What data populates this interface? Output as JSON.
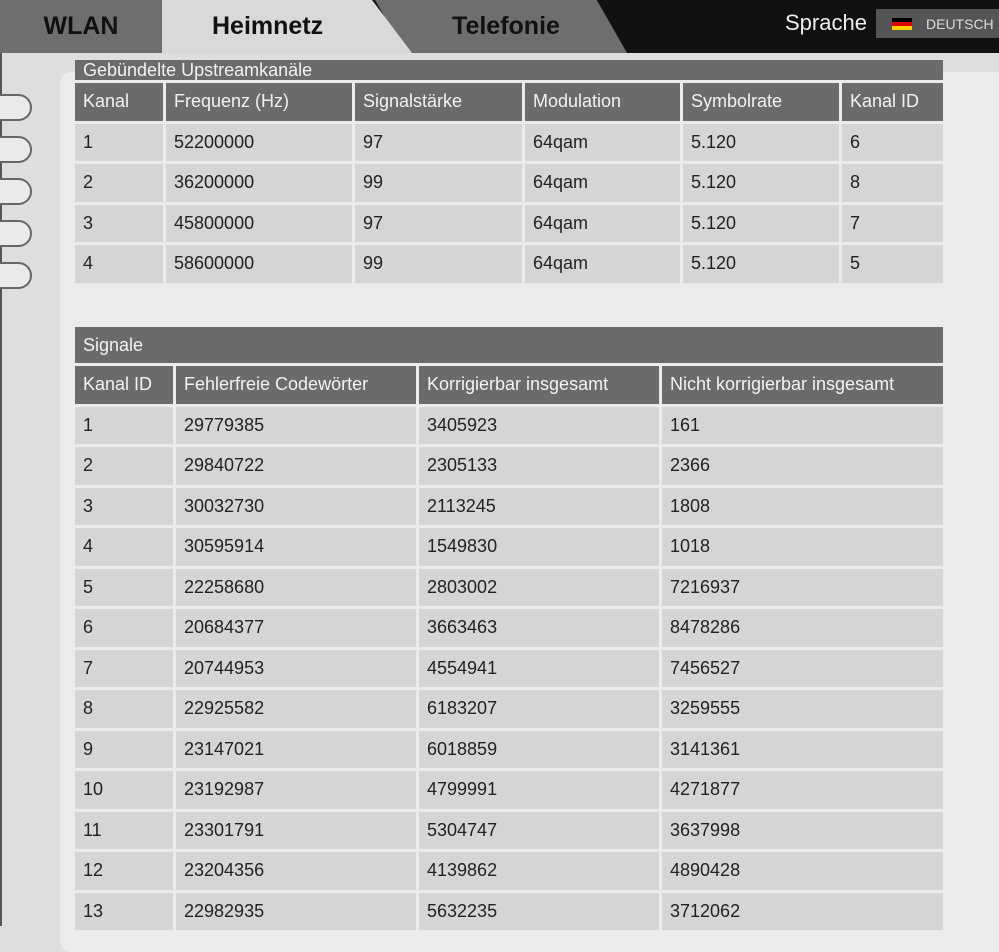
{
  "nav": {
    "tabs": [
      {
        "label": "WLAN"
      },
      {
        "label": "Heimnetz",
        "active": true
      },
      {
        "label": "Telefonie"
      }
    ],
    "language_label": "Sprache",
    "language_value": "DEUTSCH",
    "language_icon": "german-flag-icon"
  },
  "upstream": {
    "title": "Gebündelte Upstreamkanäle",
    "headers": [
      "Kanal",
      "Frequenz (Hz)",
      "Signalstärke",
      "Modulation",
      "Symbolrate",
      "Kanal ID"
    ],
    "rows": [
      [
        "1",
        "52200000",
        "97",
        "64qam",
        "5.120",
        "6"
      ],
      [
        "2",
        "36200000",
        "99",
        "64qam",
        "5.120",
        "8"
      ],
      [
        "3",
        "45800000",
        "97",
        "64qam",
        "5.120",
        "7"
      ],
      [
        "4",
        "58600000",
        "99",
        "64qam",
        "5.120",
        "5"
      ]
    ]
  },
  "signals": {
    "title": "Signale",
    "headers": [
      "Kanal ID",
      "Fehlerfreie Codewörter",
      "Korrigierbar insgesamt",
      "Nicht korrigierbar insgesamt"
    ],
    "rows": [
      [
        "1",
        "29779385",
        "3405923",
        "161"
      ],
      [
        "2",
        "29840722",
        "2305133",
        "2366"
      ],
      [
        "3",
        "30032730",
        "2113245",
        "1808"
      ],
      [
        "4",
        "30595914",
        "1549830",
        "1018"
      ],
      [
        "5",
        "22258680",
        "2803002",
        "7216937"
      ],
      [
        "6",
        "20684377",
        "3663463",
        "8478286"
      ],
      [
        "7",
        "20744953",
        "4554941",
        "7456527"
      ],
      [
        "8",
        "22925582",
        "6183207",
        "3259555"
      ],
      [
        "9",
        "23147021",
        "6018859",
        "3141361"
      ],
      [
        "10",
        "23192987",
        "4799991",
        "4271877"
      ],
      [
        "11",
        "23301791",
        "5304747",
        "3637998"
      ],
      [
        "12",
        "23204356",
        "4139862",
        "4890428"
      ],
      [
        "13",
        "22982935",
        "5632235",
        "3712062"
      ]
    ]
  }
}
